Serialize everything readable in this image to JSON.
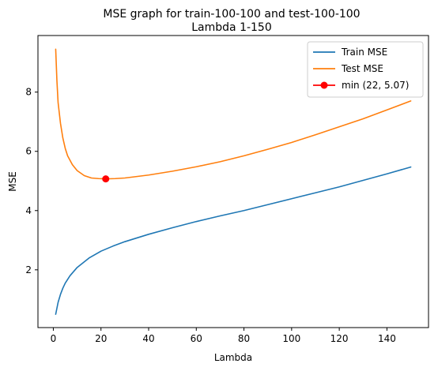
{
  "chart_data": {
    "type": "line",
    "title": "MSE graph for train-100-100 and test-100-100",
    "subtitle": "Lambda 1-150",
    "xlabel": "Lambda",
    "ylabel": "MSE",
    "xlim": [
      -6.45,
      157.45
    ],
    "ylim": [
      0.05,
      9.91
    ],
    "xticks": [
      0,
      20,
      40,
      60,
      80,
      100,
      120,
      140
    ],
    "yticks": [
      2,
      4,
      6,
      8
    ],
    "grid": false,
    "legend_position": "top-right",
    "series": [
      {
        "name": "Train MSE",
        "color": "#1f77b4",
        "x": [
          1,
          2,
          3,
          4,
          5,
          7,
          10,
          15,
          20,
          25,
          30,
          40,
          50,
          60,
          70,
          80,
          90,
          100,
          110,
          120,
          130,
          140,
          150
        ],
        "values": [
          0.5,
          0.9,
          1.17,
          1.38,
          1.55,
          1.8,
          2.08,
          2.4,
          2.63,
          2.8,
          2.95,
          3.2,
          3.42,
          3.63,
          3.82,
          4.0,
          4.2,
          4.4,
          4.6,
          4.8,
          5.02,
          5.24,
          5.47
        ]
      },
      {
        "name": "Test MSE",
        "color": "#ff7f0e",
        "x": [
          1,
          1.5,
          2,
          3,
          4,
          5,
          6,
          8,
          10,
          13,
          16,
          19,
          22,
          26,
          30,
          40,
          50,
          60,
          70,
          80,
          90,
          100,
          110,
          120,
          130,
          140,
          150
        ],
        "values": [
          9.45,
          8.4,
          7.65,
          6.95,
          6.45,
          6.1,
          5.85,
          5.55,
          5.35,
          5.18,
          5.1,
          5.08,
          5.07,
          5.08,
          5.1,
          5.2,
          5.33,
          5.48,
          5.65,
          5.85,
          6.07,
          6.3,
          6.56,
          6.83,
          7.1,
          7.4,
          7.7
        ]
      }
    ],
    "marker": {
      "name": "min (22, 5.07)",
      "color": "#ff0000",
      "x": 22,
      "y": 5.07
    }
  }
}
